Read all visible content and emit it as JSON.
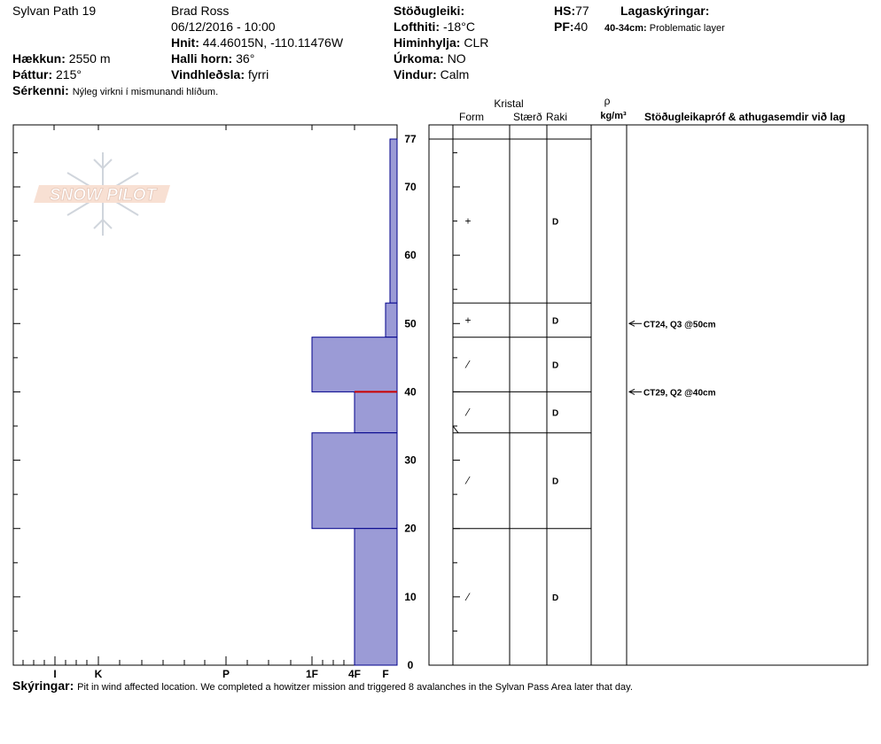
{
  "header": {
    "pit_name": "Sylvan Path 19",
    "observer": "Brad  Ross",
    "datetime": "06/12/2016 - 10:00",
    "coords_label": "Hnit:",
    "coords_value": "44.46015N, -110.11476W",
    "elevation_label": "Hækkun:",
    "elevation_value": "2550 m",
    "aspect_label": "Þáttur:",
    "aspect_value": "215°",
    "slope_label": "Halli horn:",
    "slope_value": "36°",
    "wind_loading_label": "Vindhleðsla:",
    "wind_loading_value": "fyrri",
    "specifics_label": "Sérkenni:",
    "specifics_value": "Nýleg virkni í mismunandi hlíðum.",
    "stability_label": "Stöðugleiki:",
    "stability_value": "",
    "air_temp_label": "Lofthiti:",
    "air_temp_value": "-18°C",
    "sky_label": "Himinhylja:",
    "sky_value": "CLR",
    "precip_label": "Úrkoma:",
    "precip_value": "NO",
    "wind_label": "Vindur:",
    "wind_value": "Calm",
    "hs_label": "HS:",
    "hs_value": "77",
    "pf_label": "PF:",
    "pf_value": "40",
    "layer_notes_label": "Lagaskýringar:",
    "layer_notes_range": "40-34cm:",
    "layer_notes_value": "Problematic layer"
  },
  "watermark": {
    "text": "SNOW PILOT"
  },
  "footer": {
    "comments_label": "Skýringar:",
    "comments_value": "Pit in wind affected location.  We completed a howitzer mission and triggered 8 avalanches in the Sylvan Pass Area later that day."
  },
  "chart_data": {
    "type": "bar",
    "orientation": "horizontal",
    "y_axis": {
      "min": 0,
      "max": 77,
      "ticks": [
        0,
        10,
        20,
        30,
        40,
        50,
        60,
        70,
        77
      ]
    },
    "hardness_axis": {
      "labels": [
        "I",
        "K",
        "P",
        "1F",
        "4F",
        "F"
      ]
    },
    "layers": [
      {
        "top": 77,
        "bottom": 53,
        "hardness": "F+"
      },
      {
        "top": 53,
        "bottom": 48,
        "hardness": "F"
      },
      {
        "top": 48,
        "bottom": 40,
        "hardness": "1F"
      },
      {
        "top": 40,
        "bottom": 34,
        "hardness": "4F"
      },
      {
        "top": 34,
        "bottom": 20,
        "hardness": "1F"
      },
      {
        "top": 20,
        "bottom": 0,
        "hardness": "4F"
      }
    ],
    "columns": {
      "crystal_title": "Kristal",
      "form": "Form",
      "size": "Stærð",
      "moisture": "Raki",
      "density_symbol": "ρ",
      "density_unit": "kg/m³",
      "tests": "Stöðugleikapróf & athugasemdir við lag"
    },
    "layer_details": [
      {
        "mid": 65,
        "form": "+",
        "moisture": "D"
      },
      {
        "mid": 50.5,
        "form": "+",
        "moisture": "D"
      },
      {
        "mid": 44,
        "form": "⁄",
        "moisture": "D"
      },
      {
        "mid": 37,
        "form": "⁄",
        "moisture": "D"
      },
      {
        "mid": 27,
        "form": "⁄",
        "moisture": "D"
      },
      {
        "mid": 10,
        "form": "⁄",
        "moisture": "D"
      }
    ],
    "tests": [
      {
        "depth": 50,
        "label": "CT24, Q3 @50cm"
      },
      {
        "depth": 40,
        "label": "CT29, Q2 @40cm"
      }
    ],
    "colors": {
      "layer_fill": "#9b9bd6",
      "layer_stroke": "#00008b",
      "weak_layer": "#cc0000"
    }
  }
}
